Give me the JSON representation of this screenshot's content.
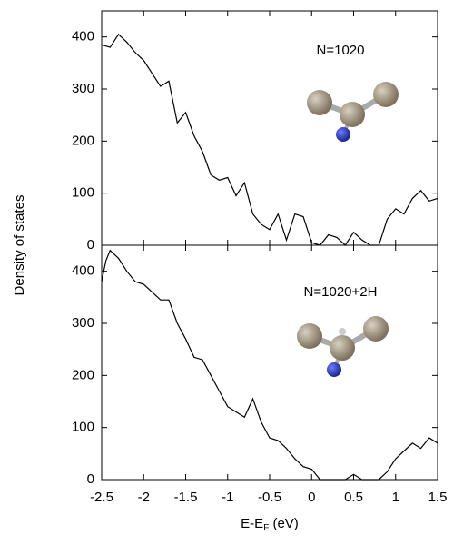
{
  "chart_data": [
    {
      "type": "line",
      "annotation": "N=1020",
      "ylabel": "Density of states",
      "x": [
        -2.5,
        -2.4,
        -2.3,
        -2.2,
        -2.1,
        -2.0,
        -1.9,
        -1.8,
        -1.7,
        -1.6,
        -1.5,
        -1.4,
        -1.3,
        -1.2,
        -1.1,
        -1.0,
        -0.9,
        -0.8,
        -0.7,
        -0.6,
        -0.5,
        -0.4,
        -0.3,
        -0.2,
        -0.1,
        0,
        0.1,
        0.2,
        0.3,
        0.4,
        0.5,
        0.6,
        0.7,
        0.8,
        0.9,
        1.0,
        1.1,
        1.2,
        1.3,
        1.4,
        1.5
      ],
      "values": [
        385,
        380,
        405,
        390,
        370,
        355,
        330,
        305,
        315,
        235,
        255,
        210,
        180,
        135,
        125,
        130,
        95,
        120,
        60,
        40,
        30,
        60,
        10,
        60,
        55,
        5,
        0,
        20,
        15,
        0,
        25,
        10,
        0,
        0,
        50,
        70,
        60,
        90,
        105,
        85,
        90
      ],
      "color": "#000000",
      "xlim": [
        -2.5,
        1.5
      ],
      "xticks": [
        -2.5,
        -2,
        -1.5,
        -1,
        -0.5,
        0,
        0.5,
        1,
        1.5
      ],
      "ylim": [
        0,
        450
      ],
      "yticks": [
        0,
        100,
        200,
        300,
        400
      ]
    },
    {
      "type": "line",
      "annotation": "N=1020+2H",
      "xlabel": [
        "E-E",
        "F",
        " (eV)"
      ],
      "x": [
        -2.5,
        -2.45,
        -2.4,
        -2.3,
        -2.2,
        -2.1,
        -2.0,
        -1.9,
        -1.8,
        -1.7,
        -1.6,
        -1.5,
        -1.4,
        -1.3,
        -1.2,
        -1.1,
        -1.0,
        -0.9,
        -0.8,
        -0.7,
        -0.6,
        -0.5,
        -0.4,
        -0.3,
        -0.2,
        -0.1,
        0,
        0.1,
        0.2,
        0.3,
        0.4,
        0.5,
        0.6,
        0.7,
        0.8,
        0.9,
        1.0,
        1.1,
        1.2,
        1.3,
        1.4,
        1.5
      ],
      "values": [
        380,
        420,
        440,
        425,
        400,
        380,
        375,
        360,
        345,
        345,
        300,
        270,
        235,
        230,
        200,
        170,
        140,
        130,
        120,
        155,
        110,
        80,
        75,
        60,
        40,
        25,
        20,
        0,
        0,
        0,
        0,
        10,
        0,
        0,
        0,
        15,
        40,
        55,
        70,
        60,
        80,
        70
      ],
      "color": "#000000",
      "xlim": [
        -2.5,
        1.5
      ],
      "xticks": [
        -2.5,
        -2,
        -1.5,
        -1,
        -0.5,
        0,
        0.5,
        1,
        1.5
      ],
      "ylim": [
        0,
        450
      ],
      "yticks": [
        0,
        100,
        200,
        300,
        400
      ]
    }
  ]
}
